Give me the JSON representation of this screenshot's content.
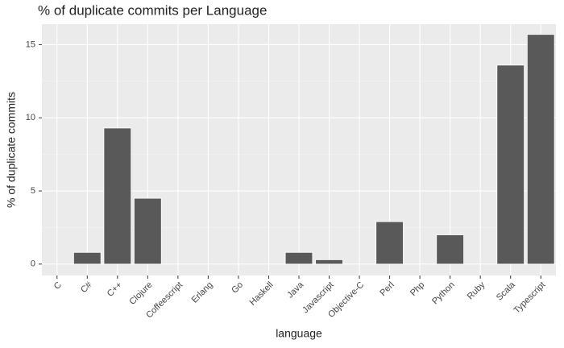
{
  "chart_data": {
    "type": "bar",
    "title": "% of duplicate commits per Language",
    "x_label": "language",
    "y_label": "% of duplicate commits",
    "categories": [
      "C",
      "C#",
      "C++",
      "Clojure",
      "Coffeescript",
      "Erlang",
      "Go",
      "Haskell",
      "Java",
      "Javascript",
      "Objective-C",
      "Perl",
      "Php",
      "Python",
      "Ruby",
      "Scala",
      "Typescript"
    ],
    "values": [
      0,
      0.8,
      9.3,
      4.5,
      0,
      0,
      0,
      0,
      0.8,
      0.3,
      0,
      2.9,
      0,
      2.0,
      0,
      13.6,
      15.7
    ],
    "color": "#595959",
    "ylim": [
      -0.78,
      16.4
    ],
    "yticks": [
      0,
      5,
      10,
      15
    ],
    "grid": true
  }
}
